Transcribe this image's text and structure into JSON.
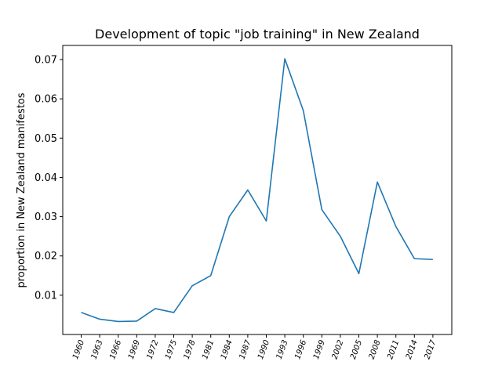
{
  "chart_data": {
    "type": "line",
    "title": "Development of topic \"job training\" in New Zealand",
    "xlabel": "",
    "ylabel": "proportion in New Zealand manifestos",
    "categories": [
      "1960",
      "1963",
      "1966",
      "1969",
      "1972",
      "1975",
      "1978",
      "1981",
      "1984",
      "1987",
      "1990",
      "1993",
      "1996",
      "1999",
      "2002",
      "2005",
      "2008",
      "2011",
      "2014",
      "2017"
    ],
    "series": [
      {
        "color": "#1f77b4",
        "values": [
          0.0056,
          0.0039,
          0.0033,
          0.0034,
          0.0066,
          0.0056,
          0.0124,
          0.015,
          0.03,
          0.0368,
          0.0289,
          0.0702,
          0.057,
          0.0318,
          0.025,
          0.0155,
          0.0388,
          0.0275,
          0.0193,
          0.0191
        ]
      }
    ],
    "yticks": [
      0.01,
      0.02,
      0.03,
      0.04,
      0.05,
      0.06,
      0.07
    ],
    "ytick_labels": [
      "0.01",
      "0.02",
      "0.03",
      "0.04",
      "0.05",
      "0.06",
      "0.07"
    ],
    "ylim": [
      0.0,
      0.0736
    ],
    "grid": false,
    "legend": "none"
  }
}
